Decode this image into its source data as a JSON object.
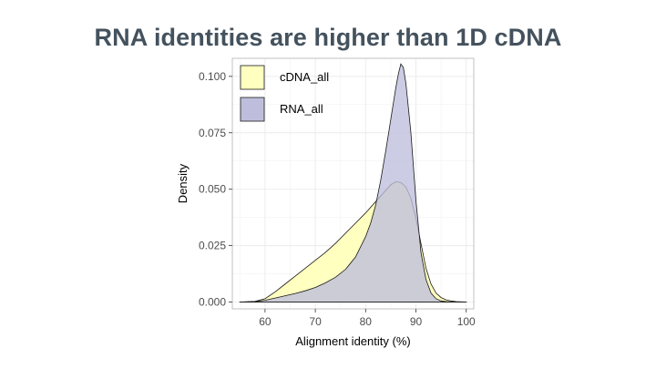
{
  "slide": {
    "title": "RNA identities are higher than 1D cDNA"
  },
  "chart_data": {
    "type": "area",
    "title": "",
    "xlabel": "Alignment identity (%)",
    "ylabel": "Density",
    "xlim": [
      53.5,
      101.5
    ],
    "ylim": [
      -0.003,
      0.108
    ],
    "x_ticks": [
      60,
      70,
      80,
      90,
      100
    ],
    "y_ticks": [
      0.0,
      0.025,
      0.05,
      0.075,
      0.1
    ],
    "x_tick_labels": [
      "60",
      "70",
      "80",
      "90",
      "100"
    ],
    "y_tick_labels": [
      "0.000",
      "0.025",
      "0.050",
      "0.075",
      "0.100"
    ],
    "grid": true,
    "legend_position": "top-left",
    "series": [
      {
        "name": "cDNA_all",
        "color": "#ffffc0",
        "x": [
          55,
          58,
          60,
          62,
          64,
          66,
          68,
          70,
          72,
          74,
          76,
          78,
          80,
          82,
          84,
          85,
          86,
          87,
          88,
          89,
          90,
          91,
          92,
          93,
          94,
          95,
          96,
          97,
          98,
          99,
          100
        ],
        "y": [
          0.0,
          0.0003,
          0.0015,
          0.0045,
          0.008,
          0.0115,
          0.015,
          0.0185,
          0.022,
          0.026,
          0.0305,
          0.035,
          0.0395,
          0.0445,
          0.0495,
          0.052,
          0.0533,
          0.053,
          0.051,
          0.046,
          0.037,
          0.026,
          0.015,
          0.008,
          0.004,
          0.002,
          0.001,
          0.0005,
          0.0002,
          0.0001,
          0.0
        ]
      },
      {
        "name": "RNA_all",
        "color": "#bebedc",
        "x": [
          55,
          58,
          60,
          62,
          64,
          66,
          68,
          70,
          72,
          74,
          76,
          78,
          80,
          81,
          82,
          83,
          84,
          85,
          86,
          86.5,
          87,
          87.5,
          88,
          89,
          90,
          91,
          92,
          93,
          94,
          95,
          96,
          97,
          98,
          99,
          100
        ],
        "y": [
          0.0,
          0.0002,
          0.0008,
          0.0018,
          0.0028,
          0.0038,
          0.005,
          0.0065,
          0.0085,
          0.011,
          0.0145,
          0.02,
          0.029,
          0.035,
          0.043,
          0.054,
          0.067,
          0.081,
          0.095,
          0.101,
          0.1055,
          0.104,
          0.097,
          0.075,
          0.045,
          0.022,
          0.01,
          0.004,
          0.0015,
          0.0005,
          0.0002,
          0.0001,
          0.0,
          0.0,
          0.0
        ]
      }
    ]
  }
}
